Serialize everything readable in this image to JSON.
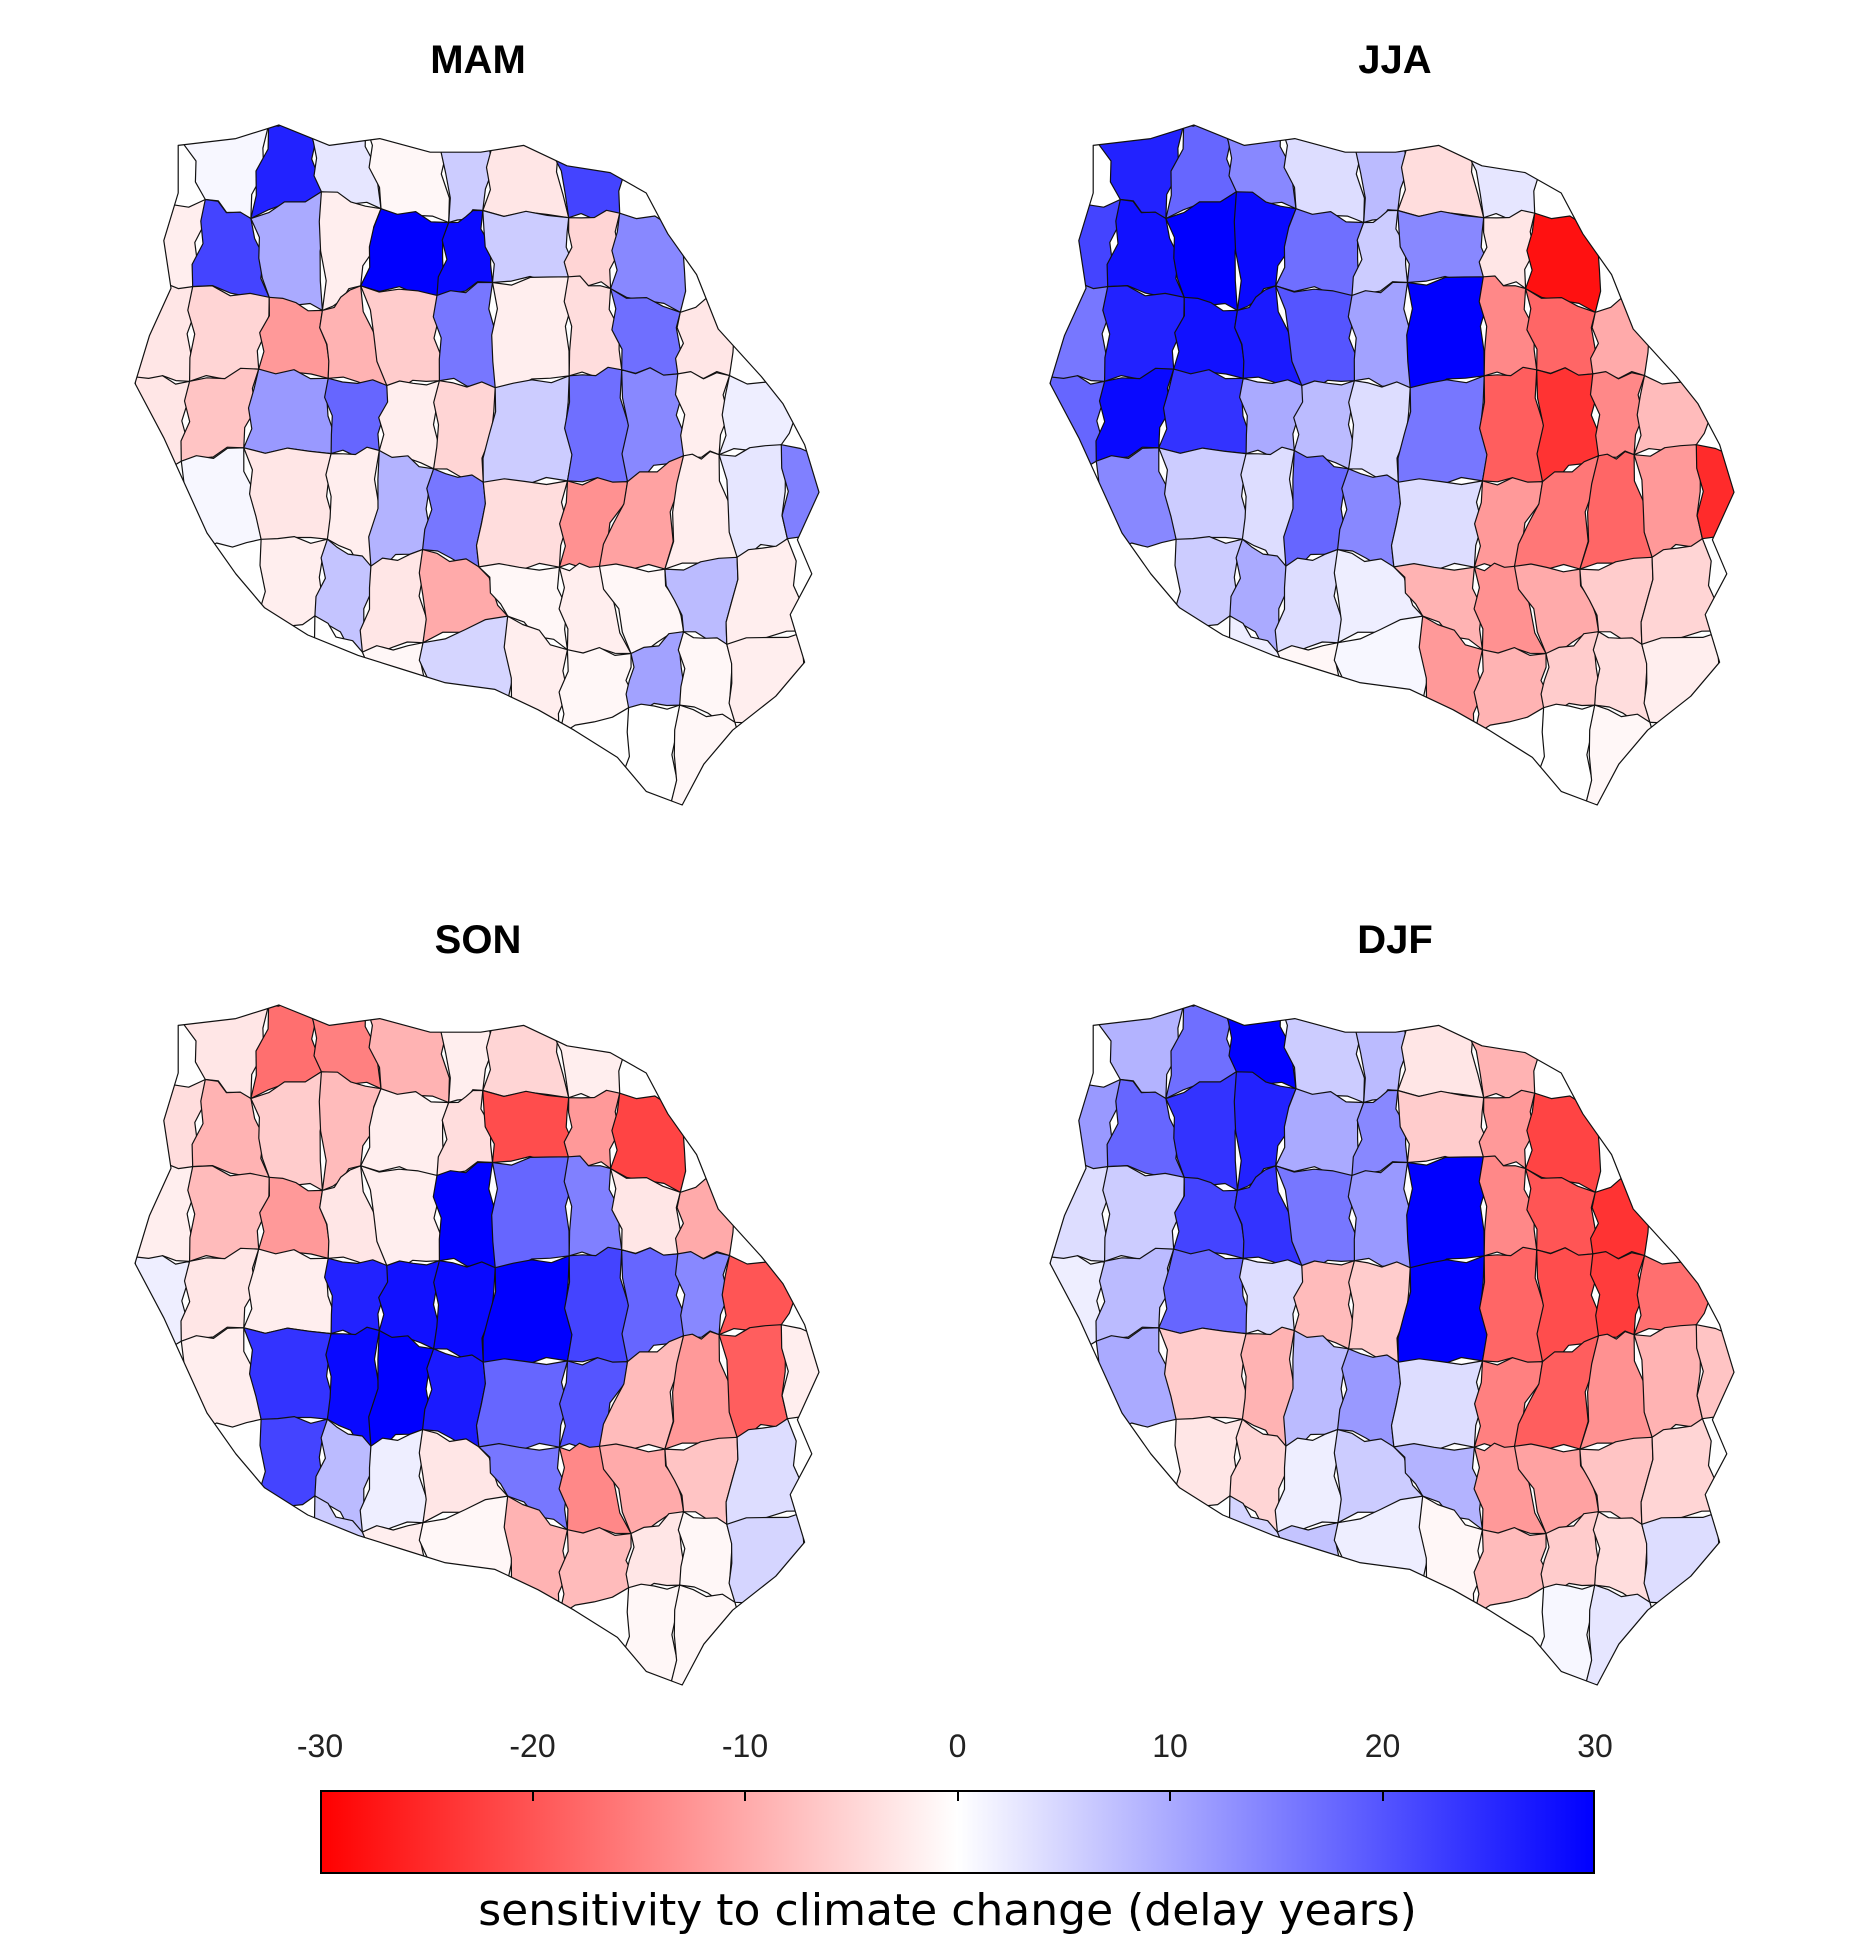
{
  "panels": [
    {
      "key": "mam",
      "title": "MAM",
      "region_values": [
        -2,
        1,
        26,
        3,
        -1,
        6,
        -3,
        22,
        27,
        5,
        2,
        -4,
        -2,
        22,
        10,
        -2,
        30,
        29,
        6,
        -5,
        14,
        -3,
        18,
        -4,
        -3,
        -5,
        -12,
        -9,
        -6,
        16,
        -2,
        -4,
        17,
        -3,
        24,
        8,
        -3,
        -7,
        12,
        18,
        -2,
        -5,
        6,
        17,
        14,
        -2,
        2,
        -6,
        22,
        1,
        -3,
        -2,
        9,
        16,
        -4,
        -13,
        -11,
        -2,
        3,
        15,
        -1,
        -4,
        -2,
        7,
        -3,
        -10,
        -1,
        -2,
        -1,
        8,
        -2,
        -1,
        -3,
        -1,
        -7,
        0,
        -1,
        5,
        -2,
        -1,
        11,
        -1,
        -2,
        -3,
        -1,
        0,
        1,
        -2,
        -1,
        -12,
        -1,
        -1,
        0,
        -1,
        -2,
        -1
      ]
    },
    {
      "key": "jja",
      "title": "JJA",
      "region_values": [
        12,
        26,
        18,
        14,
        4,
        8,
        -4,
        3,
        -9,
        -27,
        -22,
        -6,
        22,
        28,
        30,
        29,
        17,
        6,
        14,
        -3,
        -28,
        -20,
        -15,
        -4,
        16,
        26,
        28,
        27,
        20,
        11,
        30,
        -14,
        -18,
        -10,
        -23,
        -12,
        18,
        29,
        24,
        10,
        8,
        4,
        16,
        -19,
        -24,
        -14,
        -8,
        -6,
        22,
        14,
        6,
        4,
        18,
        14,
        4,
        -12,
        -16,
        -18,
        -12,
        -25,
        12,
        8,
        6,
        10,
        4,
        2,
        -9,
        -13,
        -10,
        -6,
        -5,
        -4,
        8,
        5,
        3,
        2,
        -1,
        1,
        -12,
        -9,
        -6,
        -4,
        -2,
        -1,
        2,
        1,
        0,
        -1,
        -2,
        -3,
        -1,
        -1,
        0,
        -1,
        -1,
        -2
      ]
    },
    {
      "key": "son",
      "title": "SON",
      "region_values": [
        -20,
        -3,
        -17,
        -15,
        -9,
        -2,
        -5,
        -2,
        -18,
        -22,
        -12,
        -6,
        -4,
        -9,
        -6,
        -8,
        -2,
        -4,
        -21,
        -12,
        -22,
        -28,
        -14,
        -9,
        -2,
        -8,
        -12,
        -3,
        -2,
        30,
        18,
        15,
        -3,
        -10,
        -18,
        -8,
        2,
        -3,
        -2,
        26,
        28,
        29,
        30,
        22,
        18,
        14,
        -20,
        -14,
        -1,
        -2,
        24,
        29,
        30,
        27,
        18,
        20,
        -8,
        -12,
        -19,
        -2,
        -1,
        -2,
        22,
        8,
        2,
        -3,
        16,
        -14,
        -10,
        -7,
        4,
        16,
        -1,
        -2,
        3,
        6,
        -2,
        -1,
        -9,
        -8,
        -3,
        -1,
        5,
        -1,
        -1,
        0,
        2,
        1,
        -1,
        -2,
        0,
        3,
        -1,
        -1,
        0,
        -1
      ]
    },
    {
      "key": "djf",
      "title": "DJF",
      "region_values": [
        3,
        9,
        17,
        30,
        6,
        8,
        -3,
        -9,
        -28,
        -30,
        -12,
        -4,
        12,
        18,
        24,
        26,
        10,
        14,
        -6,
        -12,
        -22,
        -26,
        -28,
        -18,
        4,
        6,
        22,
        24,
        16,
        12,
        30,
        -14,
        -20,
        -24,
        -16,
        -12,
        2,
        8,
        18,
        4,
        -8,
        -6,
        30,
        -18,
        -21,
        -23,
        -17,
        -11,
        6,
        10,
        -6,
        -9,
        8,
        12,
        4,
        -15,
        -19,
        -13,
        -9,
        -7,
        3,
        4,
        -3,
        -5,
        2,
        6,
        9,
        -12,
        -11,
        -7,
        -5,
        -10,
        -4,
        -6,
        -2,
        5,
        7,
        2,
        -1,
        -8,
        -6,
        -4,
        4,
        -2,
        -3,
        -5,
        -1,
        2,
        1,
        0,
        -2,
        -1,
        1,
        3,
        6,
        5
      ]
    }
  ],
  "colorbar": {
    "min": -30,
    "max": 30,
    "ticks": [
      "-30",
      "-20",
      "-10",
      "0",
      "10",
      "20",
      "30"
    ],
    "label": "sensitivity to climate change (delay years)",
    "color_negative": "#ff0000",
    "color_zero": "#ffffff",
    "color_positive": "#0000ff"
  }
}
